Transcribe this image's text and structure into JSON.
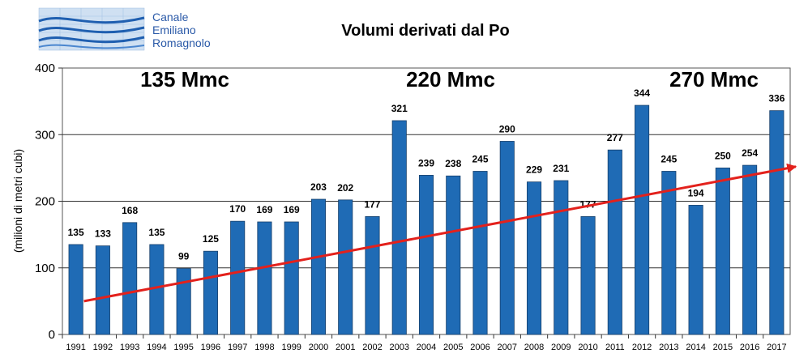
{
  "logo": {
    "line1": "Canale",
    "line2": "Emiliano",
    "line3": "Romagnolo",
    "text_color": "#2b5aa8"
  },
  "chart_data": {
    "type": "bar",
    "title": "Volumi derivati dal Po",
    "ylabel": "(milioni di metri cubi)",
    "xlabel": "",
    "ylim": [
      0,
      400
    ],
    "yticks": [
      0,
      100,
      200,
      300,
      400
    ],
    "grid": true,
    "categories": [
      "1991",
      "1992",
      "1993",
      "1994",
      "1995",
      "1996",
      "1997",
      "1998",
      "1999",
      "2000",
      "2001",
      "2002",
      "2003",
      "2004",
      "2005",
      "2006",
      "2007",
      "2008",
      "2009",
      "2010",
      "2011",
      "2012",
      "2013",
      "2014",
      "2015",
      "2016",
      "2017"
    ],
    "values": [
      135,
      133,
      168,
      135,
      99,
      125,
      170,
      169,
      169,
      203,
      202,
      177,
      321,
      239,
      238,
      245,
      290,
      229,
      231,
      177,
      277,
      344,
      245,
      194,
      250,
      254,
      336
    ],
    "bar_color": "#1f6bb5",
    "annotations": [
      "135 Mmc",
      "220 Mmc",
      "270 Mmc"
    ],
    "trend": {
      "start": 50,
      "end": 252,
      "color": "#e3211c"
    }
  }
}
